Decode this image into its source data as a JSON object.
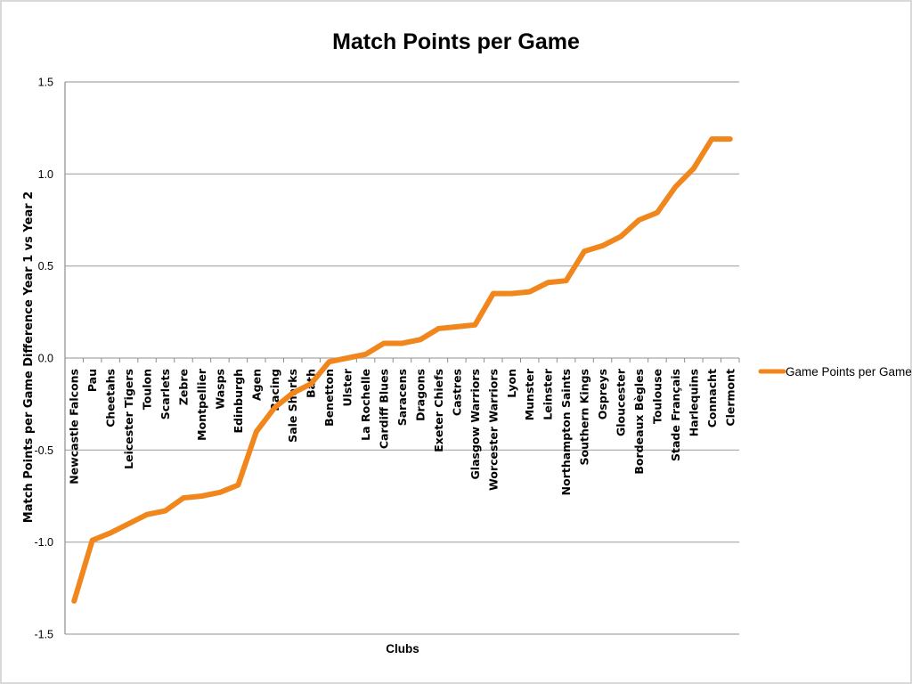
{
  "chart_data": {
    "type": "line",
    "title": "Match Points per Game",
    "xlabel": "Clubs",
    "ylabel": "Match Points per Game Difference Year 1 vs Year 2",
    "ylim": [
      -1.5,
      1.5
    ],
    "yticks": [
      1.5,
      1.0,
      0.5,
      0.0,
      -0.5,
      -1.0,
      -1.5
    ],
    "ytick_labels": [
      "1.5",
      "1.0",
      "0.5",
      "0.0",
      "-0.5",
      "-1.0",
      "-1.5"
    ],
    "grid": true,
    "legend_position": "right",
    "line_color": "#f0861c",
    "categories": [
      "Newcastle Falcons",
      "Pau",
      "Cheetahs",
      "Leicester Tigers",
      "Toulon",
      "Scarlets",
      "Zebre",
      "Montpellier",
      "Wasps",
      "Edinburgh",
      "Agen",
      "Racing",
      "Sale Sharks",
      "Bath",
      "Benetton",
      "Ulster",
      "La Rochelle",
      "Cardiff Blues",
      "Saracens",
      "Dragons",
      "Exeter Chiefs",
      "Castres",
      "Glasgow Warriors",
      "Worcester Warriors",
      "Lyon",
      "Munster",
      "Leinster",
      "Northampton Saints",
      "Southern Kings",
      "Ospreys",
      "Gloucester",
      "Bordeaux Bègles",
      "Toulouse",
      "Stade Français",
      "Harlequins",
      "Connacht",
      "Clermont"
    ],
    "series": [
      {
        "name": "Game Points per Game",
        "values": [
          -1.32,
          -0.99,
          -0.95,
          -0.9,
          -0.85,
          -0.83,
          -0.76,
          -0.75,
          -0.73,
          -0.69,
          -0.4,
          -0.27,
          -0.19,
          -0.14,
          -0.02,
          0.0,
          0.02,
          0.08,
          0.08,
          0.1,
          0.16,
          0.17,
          0.18,
          0.35,
          0.35,
          0.36,
          0.41,
          0.42,
          0.58,
          0.61,
          0.66,
          0.75,
          0.79,
          0.93,
          1.03,
          1.19,
          1.19
        ]
      }
    ]
  }
}
